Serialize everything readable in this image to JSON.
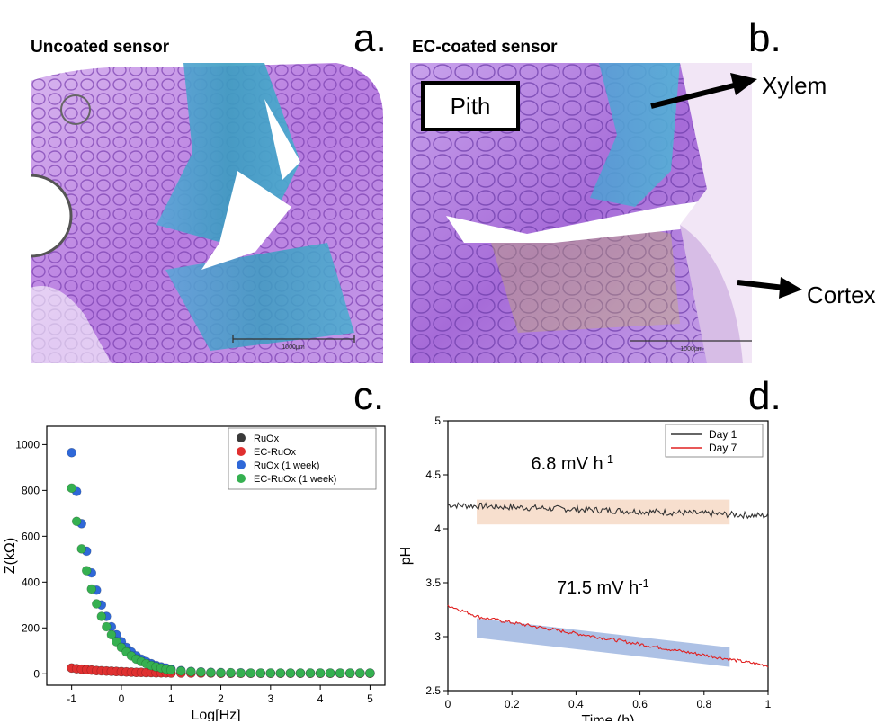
{
  "panels": {
    "a": {
      "letter": "a.",
      "title": "Uncoated sensor",
      "scalebar": "1000µm"
    },
    "b": {
      "letter": "b.",
      "title": "EC-coated sensor",
      "scalebar": "1000µm",
      "labels": {
        "pith": "Pith",
        "xylem": "Xylem",
        "cortex": "Cortex"
      }
    },
    "c": {
      "letter": "c."
    },
    "d": {
      "letter": "d."
    }
  },
  "colors": {
    "ruox": "#3a3a3a",
    "ec_ruox": "#e03030",
    "ruox_week": "#2f68d8",
    "ec_ruox_week": "#35b050",
    "day1": "#333333",
    "day7": "#e02020",
    "band_top": "#f6d9c6",
    "band_bottom": "#9fb6e0"
  },
  "chart_data": [
    {
      "type": "scatter",
      "xlabel": "Log[Hz]",
      "ylabel": "Z(kΩ)",
      "xlim": [
        -1.5,
        5.3
      ],
      "ylim": [
        -50,
        1080
      ],
      "xticks": [
        -1,
        0,
        1,
        2,
        3,
        4,
        5
      ],
      "yticks": [
        0,
        200,
        400,
        600,
        800,
        1000
      ],
      "legend": "top-right",
      "x": [
        -1.0,
        -0.9,
        -0.8,
        -0.7,
        -0.6,
        -0.5,
        -0.4,
        -0.3,
        -0.2,
        -0.1,
        0.0,
        0.1,
        0.2,
        0.3,
        0.4,
        0.5,
        0.6,
        0.7,
        0.8,
        0.9,
        1.0,
        1.2,
        1.4,
        1.6,
        1.8,
        2.0,
        2.2,
        2.4,
        2.6,
        2.8,
        3.0,
        3.2,
        3.4,
        3.6,
        3.8,
        4.0,
        4.2,
        4.4,
        4.6,
        4.8,
        5.0
      ],
      "series": [
        {
          "name": "RuOx",
          "values": [
            25,
            22,
            20,
            18,
            16,
            14,
            13,
            12,
            11,
            10,
            9,
            8,
            7,
            6,
            6,
            5,
            5,
            4,
            4,
            4,
            3,
            3,
            3,
            3,
            3,
            2,
            2,
            2,
            2,
            2,
            2,
            2,
            2,
            2,
            2,
            2,
            2,
            2,
            2,
            2,
            2
          ]
        },
        {
          "name": "EC-RuOx",
          "values": [
            25,
            22,
            20,
            18,
            16,
            14,
            13,
            12,
            11,
            10,
            9,
            8,
            7,
            6,
            6,
            5,
            5,
            4,
            4,
            4,
            3,
            3,
            3,
            3,
            3,
            2,
            2,
            2,
            2,
            2,
            2,
            2,
            2,
            2,
            2,
            2,
            2,
            2,
            2,
            2,
            2
          ]
        },
        {
          "name": "RuOx (1 week)",
          "values": [
            965,
            795,
            655,
            535,
            440,
            365,
            300,
            250,
            205,
            170,
            140,
            115,
            95,
            78,
            64,
            53,
            44,
            36,
            30,
            25,
            20,
            14,
            10,
            8,
            6,
            5,
            4,
            4,
            3,
            3,
            3,
            3,
            3,
            3,
            3,
            3,
            3,
            3,
            3,
            3,
            3
          ]
        },
        {
          "name": "EC-RuOx (1 week)",
          "values": [
            810,
            665,
            545,
            450,
            370,
            305,
            250,
            205,
            170,
            140,
            115,
            95,
            78,
            64,
            53,
            44,
            36,
            30,
            25,
            20,
            16,
            12,
            9,
            7,
            5,
            4,
            4,
            3,
            3,
            3,
            3,
            3,
            3,
            3,
            3,
            3,
            3,
            3,
            3,
            3,
            3
          ]
        }
      ]
    },
    {
      "type": "line",
      "xlabel": "Time (h)",
      "ylabel": "pH",
      "xlim": [
        0,
        1
      ],
      "ylim": [
        2.5,
        5
      ],
      "xticks": [
        0,
        0.2,
        0.4,
        0.6,
        0.8,
        1
      ],
      "yticks": [
        2.5,
        3,
        3.5,
        4,
        4.5,
        5
      ],
      "legend": "top-right",
      "series": [
        {
          "name": "Day 1",
          "start": 4.22,
          "end": 4.12,
          "noise": 0.03
        },
        {
          "name": "Day 7",
          "start": 3.23,
          "end": 2.73,
          "noise": 0.015
        }
      ],
      "annotations": [
        {
          "text": "6.8 mV h",
          "sup": "-1"
        },
        {
          "text": "71.5 mV h",
          "sup": "-1"
        }
      ]
    }
  ]
}
